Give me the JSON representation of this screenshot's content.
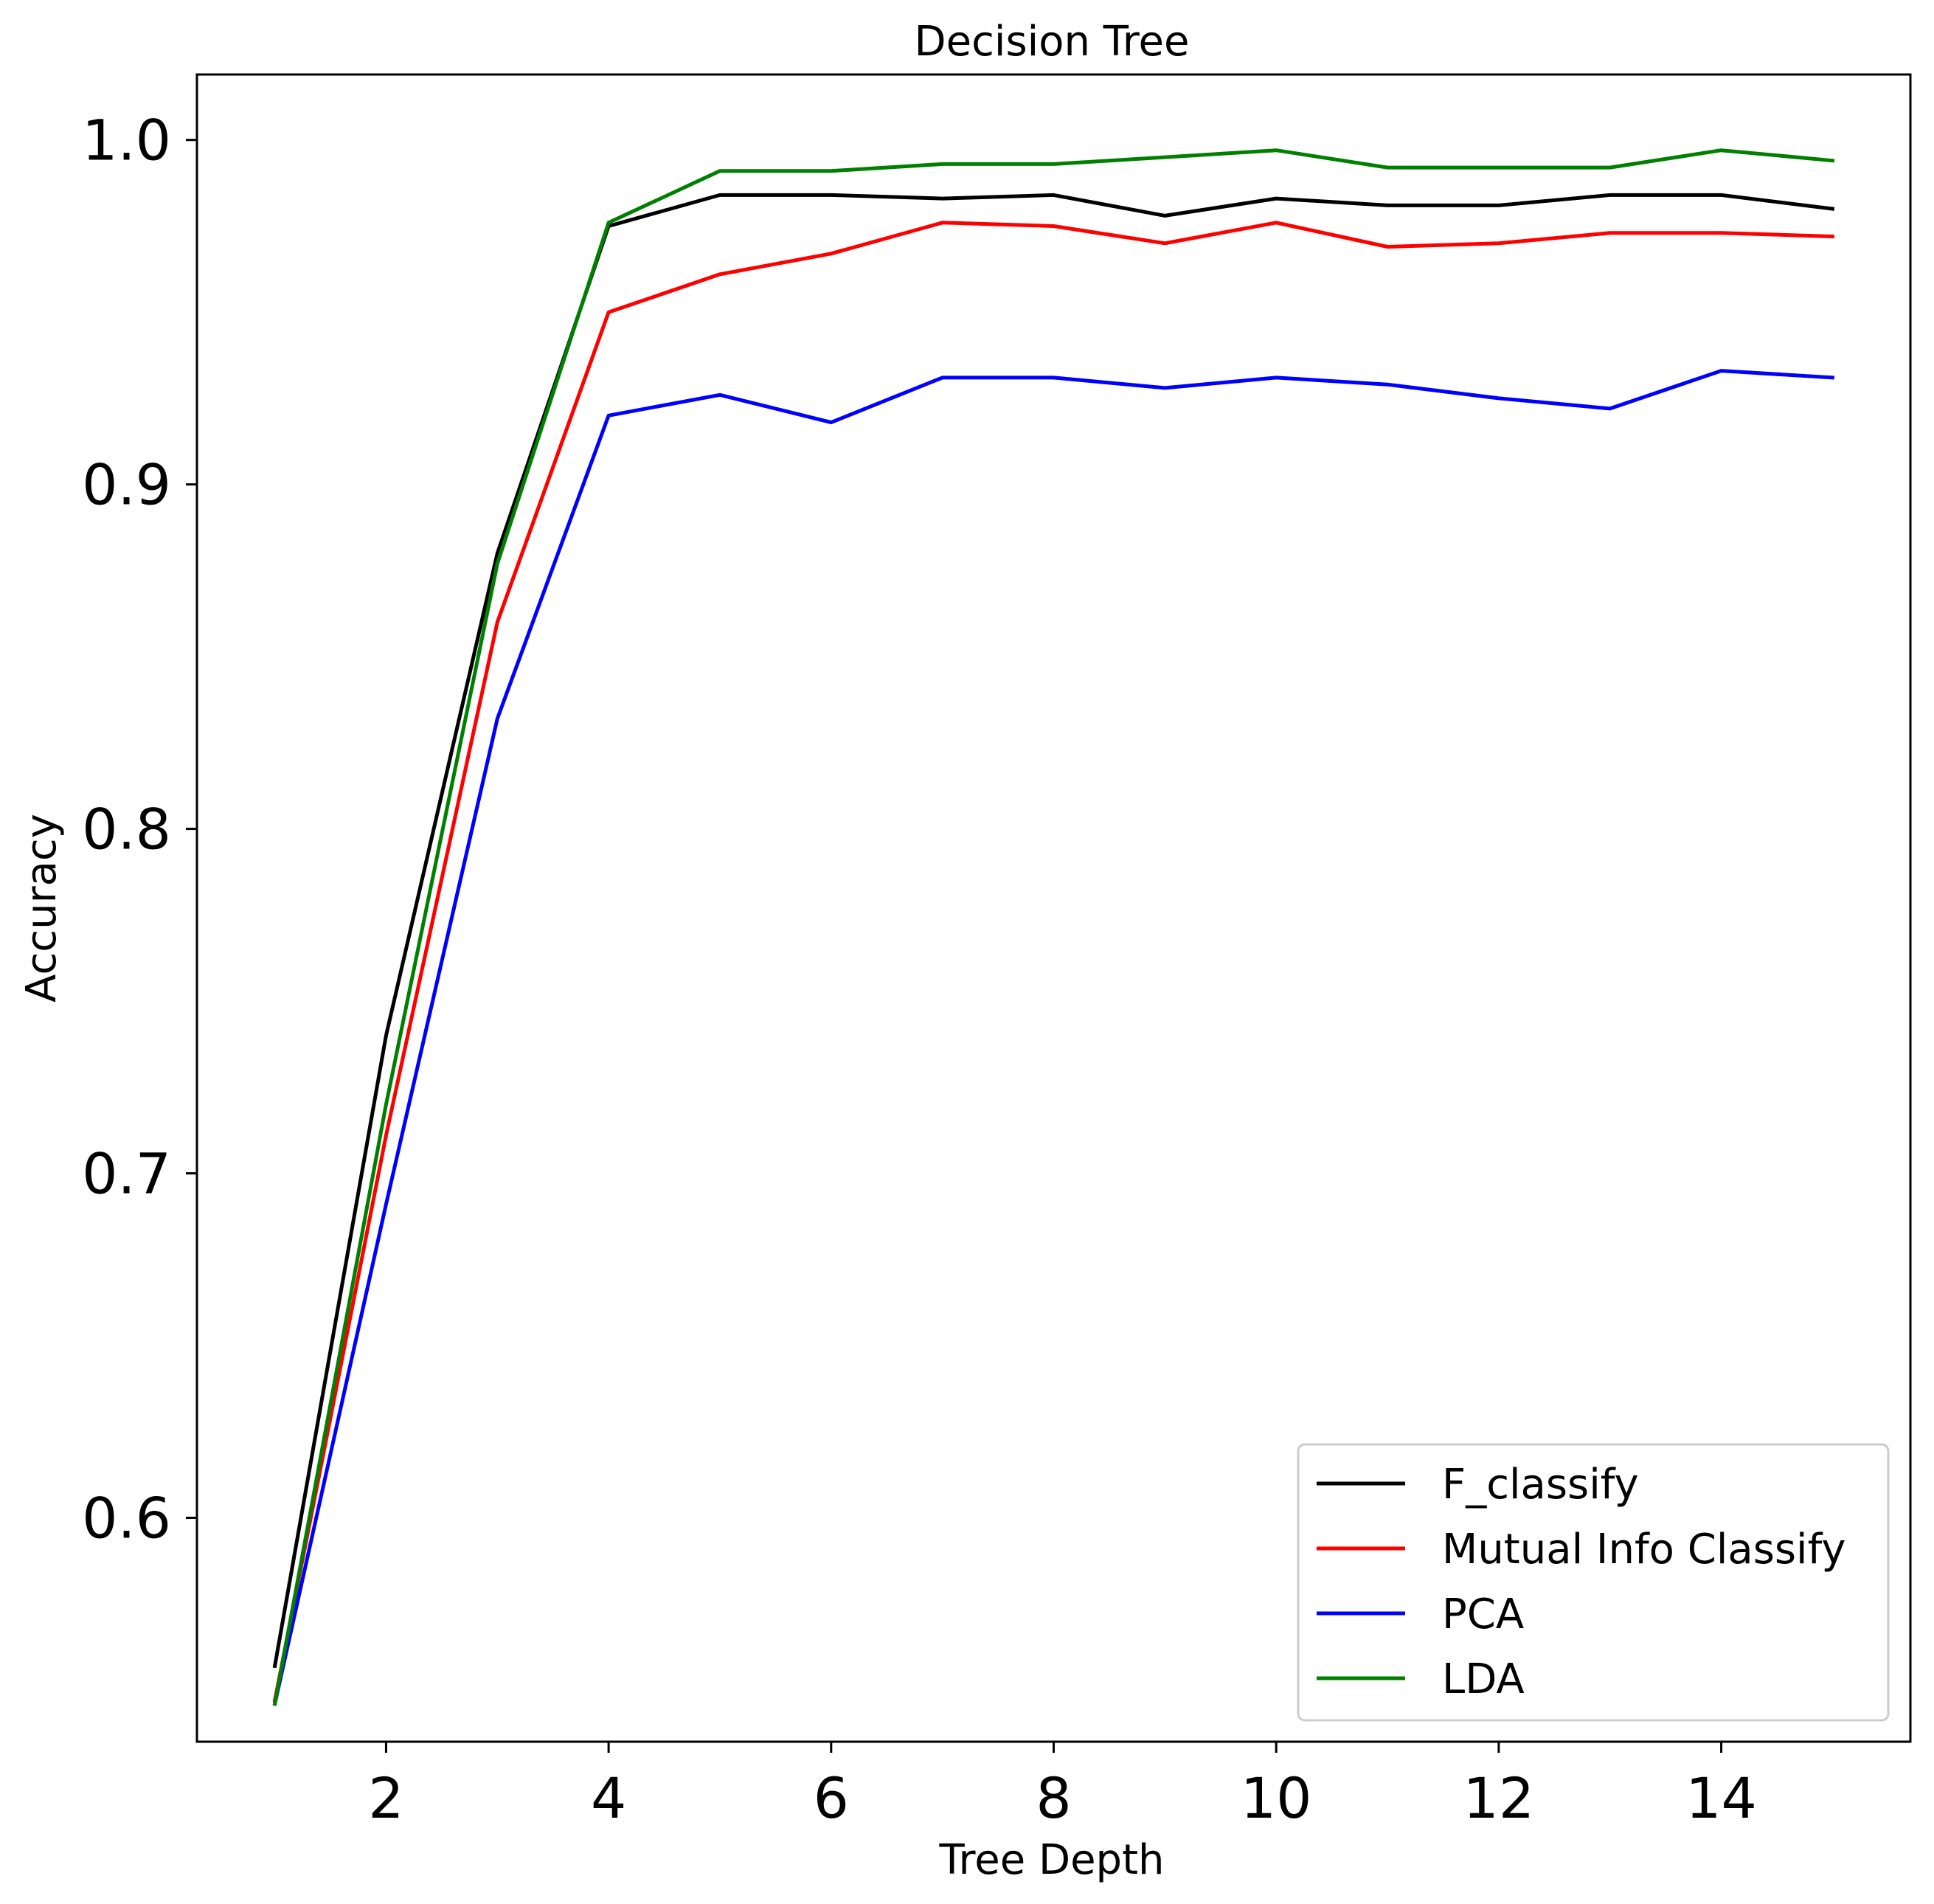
{
  "chart_data": {
    "type": "line",
    "title": "Decision Tree",
    "xlabel": "Tree Depth",
    "ylabel": "Accuracy",
    "x": [
      1,
      2,
      3,
      4,
      5,
      6,
      7,
      8,
      9,
      10,
      11,
      12,
      13,
      14,
      15
    ],
    "xlim": [
      0.3,
      15.7
    ],
    "ylim": [
      0.535,
      1.019
    ],
    "xticks": [
      2,
      4,
      6,
      8,
      10,
      12,
      14
    ],
    "yticks": [
      0.6,
      0.7,
      0.8,
      0.9,
      1.0
    ],
    "xtick_labels": [
      "2",
      "4",
      "6",
      "8",
      "10",
      "12",
      "14"
    ],
    "ytick_labels": [
      "0.6",
      "0.7",
      "0.8",
      "0.9",
      "1.0"
    ],
    "grid": false,
    "legend_position": "lower-right",
    "series": [
      {
        "name": "F_classify",
        "color": "#000000",
        "values": [
          0.557,
          0.74,
          0.88,
          0.975,
          0.984,
          0.984,
          0.983,
          0.984,
          0.978,
          0.983,
          0.981,
          0.981,
          0.984,
          0.984,
          0.98
        ]
      },
      {
        "name": "Mutual Info Classify",
        "color": "#ff0000",
        "values": [
          0.547,
          0.711,
          0.86,
          0.95,
          0.961,
          0.967,
          0.976,
          0.975,
          0.97,
          0.976,
          0.969,
          0.97,
          0.973,
          0.973,
          0.972
        ]
      },
      {
        "name": "PCA",
        "color": "#0000ff",
        "values": [
          0.546,
          0.691,
          0.832,
          0.92,
          0.926,
          0.918,
          0.931,
          0.931,
          0.928,
          0.931,
          0.929,
          0.925,
          0.922,
          0.933,
          0.931
        ]
      },
      {
        "name": "LDA",
        "color": "#008000",
        "values": [
          0.546,
          0.72,
          0.877,
          0.976,
          0.991,
          0.991,
          0.993,
          0.993,
          0.995,
          0.997,
          0.992,
          0.992,
          0.992,
          0.997,
          0.994
        ]
      }
    ]
  }
}
